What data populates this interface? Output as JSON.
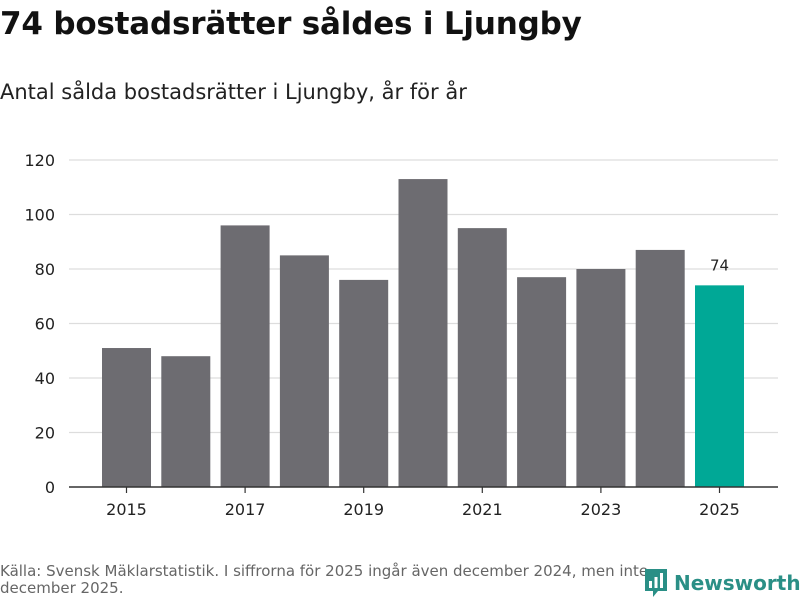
{
  "title": "74 bostadsrätter såldes i Ljungby",
  "subtitle": "Antal sålda bostadsrätter i Ljungby, år för år",
  "source": "Källa: Svensk Mäklarstatistik. I siffrorna för 2025 ingår även december 2024, men inte december 2025.",
  "brand": {
    "name": "Newsworthy",
    "icon": "newsworthy-logo-icon"
  },
  "colors": {
    "bar": "#6d6c71",
    "highlight": "#00a896",
    "grid": "#dddddd",
    "axis": "#333333",
    "brand": "#2a8f86"
  },
  "chart_data": {
    "type": "bar",
    "title": "74 bostadsrätter såldes i Ljungby",
    "subtitle": "Antal sålda bostadsrätter i Ljungby, år för år",
    "xlabel": "",
    "ylabel": "",
    "categories": [
      "2015",
      "2016",
      "2017",
      "2018",
      "2019",
      "2020",
      "2021",
      "2022",
      "2023",
      "2024",
      "2025"
    ],
    "values": [
      51,
      48,
      96,
      85,
      76,
      113,
      95,
      77,
      80,
      87,
      74
    ],
    "highlight_index": 10,
    "data_labels": [
      {
        "category": "2025",
        "label": "74"
      }
    ],
    "xtick_labels": [
      "2015",
      "2017",
      "2019",
      "2021",
      "2023",
      "2025"
    ],
    "yticks": [
      0,
      20,
      40,
      60,
      80,
      100,
      120
    ],
    "ylim": [
      0,
      120
    ],
    "grid": true
  }
}
